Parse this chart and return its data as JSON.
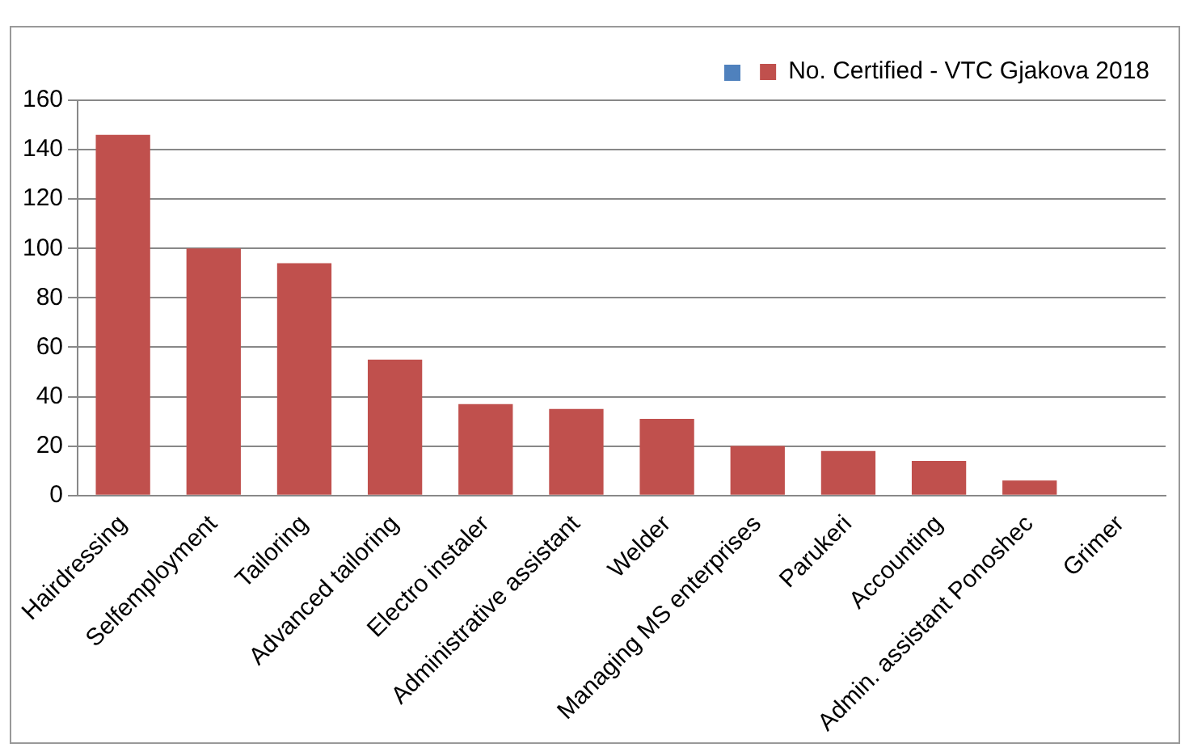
{
  "chart_data": {
    "type": "bar",
    "categories": [
      "Hairdressing",
      "Selfemployment",
      "Tailoring",
      "Advanced tailoring",
      "Electro instaler",
      "Administrative assistant",
      "Welder",
      "Managing MS enterprises",
      "Parukeri",
      "Accounting",
      "Admin. assistant Ponoshec",
      "Grimer"
    ],
    "series": [
      {
        "name": "No. Certified - VTC Gjakova 2018",
        "color": "#c0504d",
        "values": [
          146,
          100,
          94,
          55,
          37,
          35,
          31,
          20,
          18,
          14,
          6,
          0
        ]
      }
    ],
    "ylim": [
      0,
      160
    ],
    "yticks": [
      0,
      20,
      40,
      60,
      80,
      100,
      120,
      140,
      160
    ],
    "grid": "y",
    "legend": "top right"
  }
}
